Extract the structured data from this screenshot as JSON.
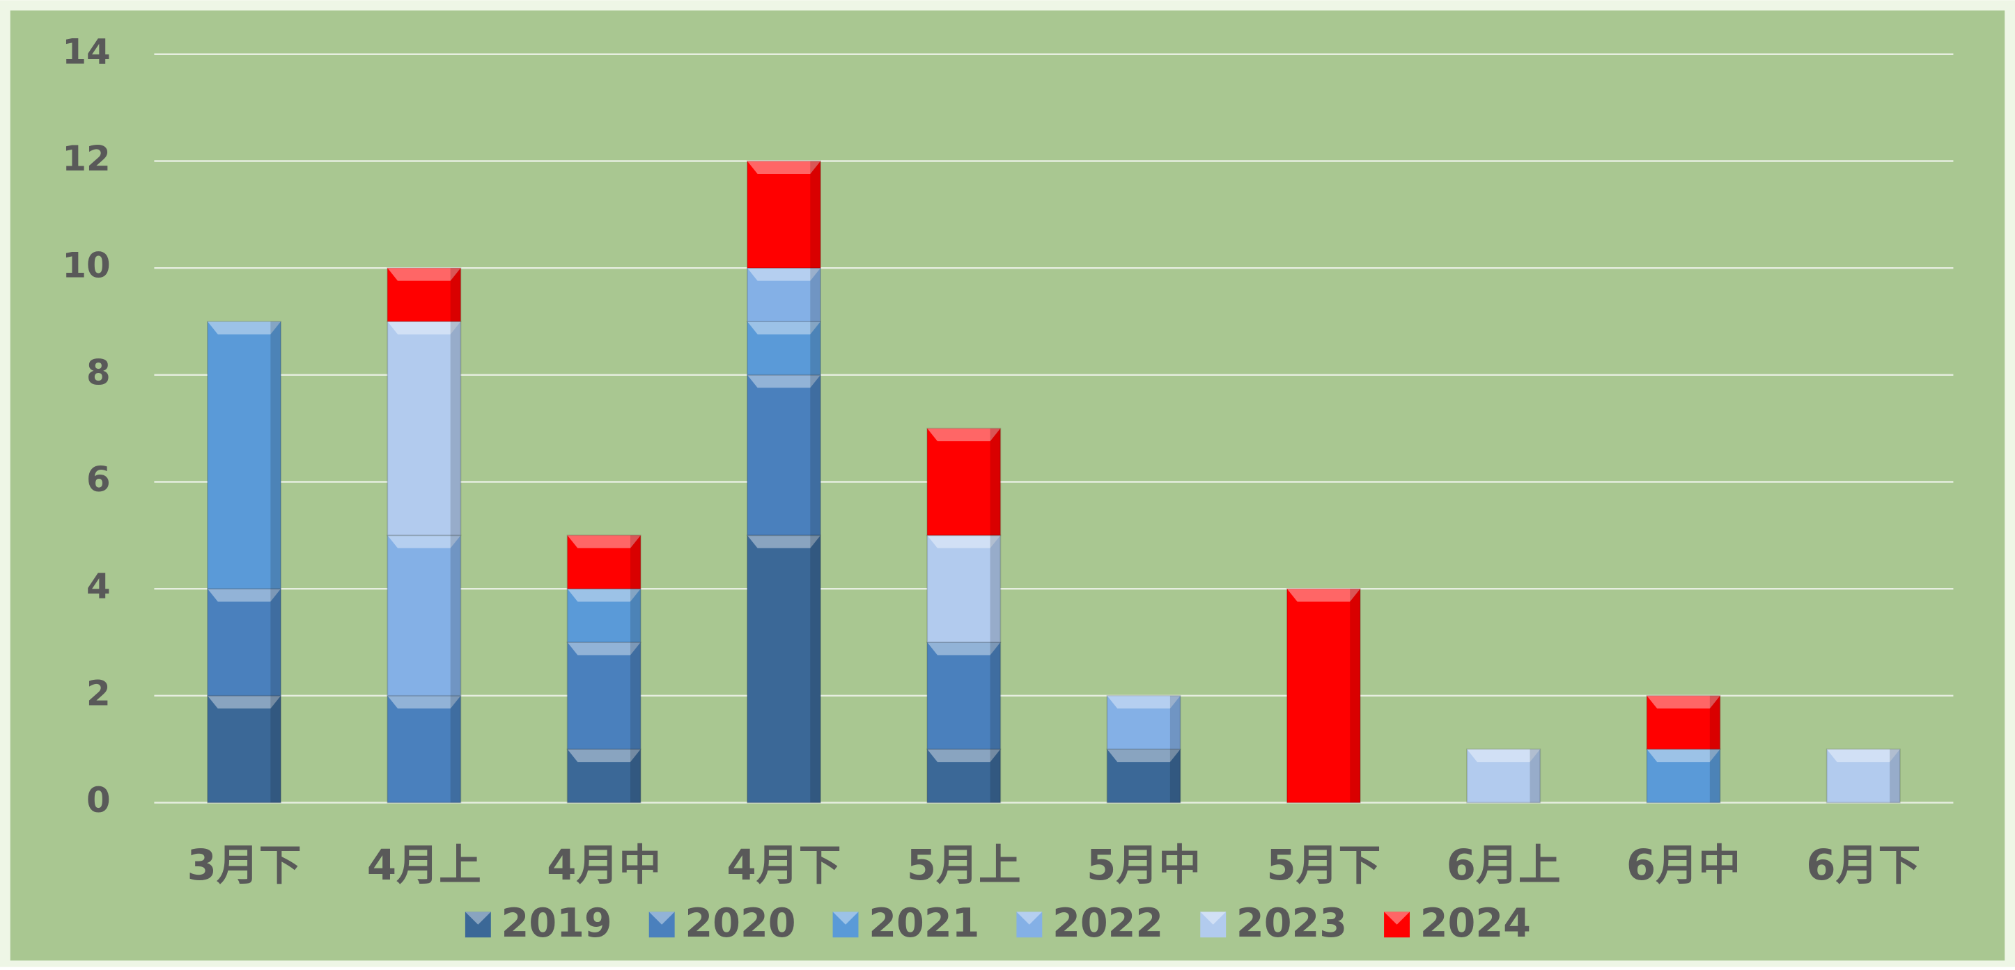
{
  "chart_data": {
    "type": "stacked_bar",
    "categories": [
      "3月下",
      "4月上",
      "4月中",
      "4月下",
      "5月上",
      "5月中",
      "5月下",
      "6月上",
      "6月中",
      "6月下"
    ],
    "series": [
      {
        "name": "2019",
        "color": "#3b6897",
        "values": [
          2,
          0,
          1,
          5,
          1,
          1,
          0,
          0,
          0,
          0
        ]
      },
      {
        "name": "2020",
        "color": "#4a80bd",
        "values": [
          2,
          2,
          2,
          3,
          2,
          0,
          0,
          0,
          0,
          0
        ]
      },
      {
        "name": "2021",
        "color": "#5a9ad8",
        "values": [
          5,
          0,
          1,
          1,
          0,
          0,
          0,
          0,
          1,
          0
        ]
      },
      {
        "name": "2022",
        "color": "#84b0e6",
        "values": [
          0,
          3,
          0,
          1,
          0,
          1,
          0,
          0,
          0,
          0
        ]
      },
      {
        "name": "2023",
        "color": "#b2cbee",
        "values": [
          0,
          4,
          0,
          0,
          2,
          0,
          0,
          1,
          0,
          1
        ]
      },
      {
        "name": "2024",
        "color": "#ff0000",
        "values": [
          0,
          1,
          1,
          2,
          2,
          0,
          4,
          0,
          1,
          0
        ]
      }
    ],
    "ylim": [
      0,
      14
    ],
    "yticks": [
      0,
      2,
      4,
      6,
      8,
      10,
      12,
      14
    ],
    "grid": true,
    "legend": "bottom"
  }
}
